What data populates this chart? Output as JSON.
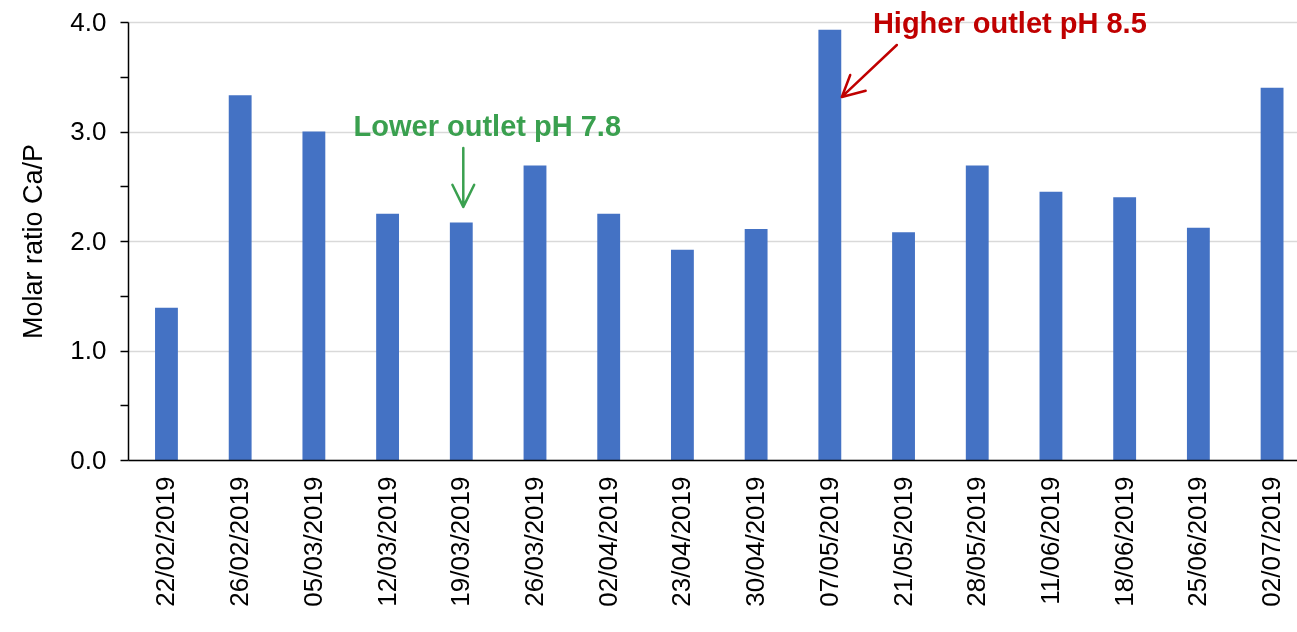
{
  "chart_data": {
    "type": "bar",
    "ylabel": "Molar ratio Ca/P",
    "categories": [
      "22/02/2019",
      "26/02/2019",
      "05/03/2019",
      "12/03/2019",
      "19/03/2019",
      "26/03/2019",
      "02/04/2019",
      "23/04/2019",
      "30/04/2019",
      "07/05/2019",
      "21/05/2019",
      "28/05/2019",
      "11/06/2019",
      "18/06/2019",
      "25/06/2019",
      "02/07/2019"
    ],
    "values": [
      1.39,
      3.33,
      3.0,
      2.25,
      2.17,
      2.69,
      2.25,
      1.92,
      2.11,
      3.93,
      2.08,
      2.69,
      2.45,
      2.4,
      2.12,
      3.4
    ],
    "color": "#4472c4",
    "ylim": [
      0,
      4
    ],
    "yticks": [
      {
        "value": 0,
        "label": "0.0"
      },
      {
        "value": 0.5,
        "label": null
      },
      {
        "value": 1,
        "label": "1.0"
      },
      {
        "value": 1.5,
        "label": null
      },
      {
        "value": 2,
        "label": "2.0"
      },
      {
        "value": 2.5,
        "label": null
      },
      {
        "value": 3,
        "label": "3.0"
      },
      {
        "value": 3.5,
        "label": null
      },
      {
        "value": 4,
        "label": "4.0"
      }
    ],
    "grid": "y",
    "annotations": [
      {
        "text": "Lower outlet pH 7.8",
        "x": "19/03/2019",
        "y": 2.17
      },
      {
        "text": "Higher outlet pH 8.5",
        "x": "07/05/2019",
        "y": 3.93
      }
    ]
  }
}
